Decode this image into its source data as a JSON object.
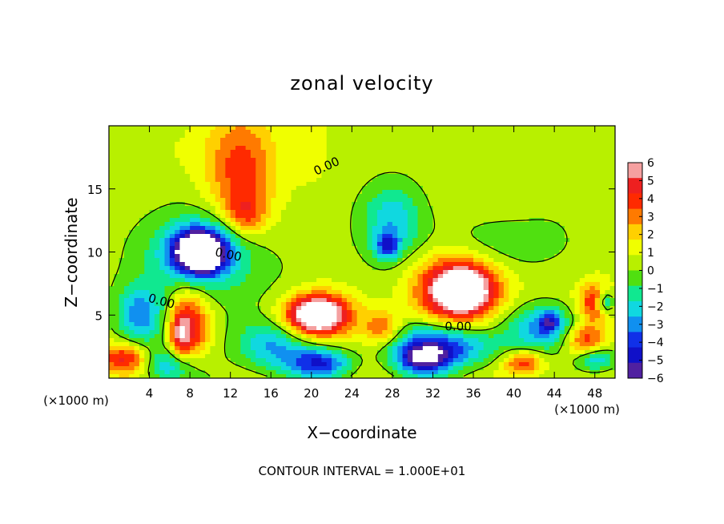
{
  "chart_data": {
    "type": "heatmap",
    "title": "zonal velocity",
    "xlabel": "X−coordinate",
    "ylabel": "Z−coordinate",
    "x_unit_left": "(×1000 m)",
    "x_unit_right": "(×1000 m)",
    "footer": "CONTOUR INTERVAL = 1.000E+01",
    "xlim": [
      0,
      50
    ],
    "ylim": [
      0,
      20
    ],
    "x_ticks": [
      4,
      8,
      12,
      16,
      20,
      24,
      28,
      32,
      36,
      40,
      44,
      48
    ],
    "x_tick_labels": [
      "4",
      "8",
      "12",
      "16",
      "20",
      "24",
      "28",
      "32",
      "36",
      "40",
      "44",
      "48"
    ],
    "y_ticks": [
      5,
      10,
      15
    ],
    "y_tick_labels": [
      "5",
      "10",
      "15"
    ],
    "colorbar": {
      "levels": [
        6,
        5,
        4,
        3,
        2,
        1,
        0,
        -1,
        -2,
        -3,
        -4,
        -5,
        -6
      ],
      "labels": [
        "6",
        "5",
        "4",
        "3",
        "2",
        "1",
        "0",
        "−1",
        "−2",
        "−3",
        "−4",
        "−5",
        "−6"
      ],
      "colors": [
        "#f5a0a0",
        "#ee2020",
        "#ff2a00",
        "#ff7a00",
        "#ffd000",
        "#f0ff00",
        "#b8f000",
        "#50e010",
        "#10e890",
        "#10d8e0",
        "#1090f0",
        "#1030e8",
        "#1010c8",
        "#5020a0"
      ]
    },
    "contour_labels": [
      "0.00",
      "0.00",
      "0.00",
      "0.00"
    ],
    "field": {
      "background": 0.6,
      "blobs": [
        {
          "x": 13,
          "z": 16.5,
          "sx": 3.5,
          "sz": 4.5,
          "v": 3.5
        },
        {
          "x": 13.5,
          "z": 13,
          "sx": 2.0,
          "sz": 1.6,
          "v": 2.5
        },
        {
          "x": 10,
          "z": 8,
          "sx": 11.0,
          "sz": 6.5,
          "v": -0.9
        },
        {
          "x": 9,
          "z": 10,
          "sx": 4.0,
          "sz": 2.6,
          "v": -4.5
        },
        {
          "x": 9,
          "z": 10,
          "sx": 2.2,
          "sz": 1.5,
          "v": -8.0
        },
        {
          "x": 28,
          "z": 12.5,
          "sx": 3.0,
          "sz": 3.0,
          "v": -3.0
        },
        {
          "x": 27.5,
          "z": 10.5,
          "sx": 1.2,
          "sz": 1.0,
          "v": -3.5
        },
        {
          "x": 20.5,
          "z": 5,
          "sx": 3.5,
          "sz": 1.8,
          "v": 6.0
        },
        {
          "x": 20.5,
          "z": 5,
          "sx": 2.2,
          "sz": 1.1,
          "v": 4.0
        },
        {
          "x": 34.5,
          "z": 7,
          "sx": 4.0,
          "sz": 2.6,
          "v": 6.5
        },
        {
          "x": 35,
          "z": 7,
          "sx": 2.5,
          "sz": 1.6,
          "v": 3.5
        },
        {
          "x": 27,
          "z": 4,
          "sx": 1.8,
          "sz": 1.4,
          "v": 3.0
        },
        {
          "x": 8,
          "z": 4,
          "sx": 2.0,
          "sz": 3.2,
          "v": 4.5
        },
        {
          "x": 7,
          "z": 3.5,
          "sx": 1.0,
          "sz": 1.8,
          "v": 3.0
        },
        {
          "x": 3,
          "z": 5,
          "sx": 2.2,
          "sz": 2.2,
          "v": -3.5
        },
        {
          "x": 1.5,
          "z": 1.5,
          "sx": 2.5,
          "sz": 1.2,
          "v": 4.0
        },
        {
          "x": 6,
          "z": 1.0,
          "sx": 3.0,
          "sz": 1.4,
          "v": -3.0
        },
        {
          "x": 16,
          "z": 2.5,
          "sx": 3.5,
          "sz": 2.0,
          "v": -3.0
        },
        {
          "x": 21,
          "z": 1.2,
          "sx": 3.0,
          "sz": 1.2,
          "v": -4.5
        },
        {
          "x": 33,
          "z": 2.5,
          "sx": 5.0,
          "sz": 1.8,
          "v": -5.0
        },
        {
          "x": 31,
          "z": 1.5,
          "sx": 2.5,
          "sz": 1.2,
          "v": -4.0
        },
        {
          "x": 43,
          "z": 4,
          "sx": 3.5,
          "sz": 1.8,
          "v": -3.5
        },
        {
          "x": 43.5,
          "z": 4.5,
          "sx": 1.0,
          "sz": 0.8,
          "v": -3.0
        },
        {
          "x": 41,
          "z": 1.2,
          "sx": 2.0,
          "sz": 1.0,
          "v": 4.0
        },
        {
          "x": 48,
          "z": 6,
          "sx": 1.6,
          "sz": 1.6,
          "v": 4.0
        },
        {
          "x": 49,
          "z": 6,
          "sx": 0.9,
          "sz": 0.9,
          "v": -4.0
        },
        {
          "x": 47,
          "z": 3,
          "sx": 2.0,
          "sz": 1.3,
          "v": 3.5
        },
        {
          "x": 48,
          "z": 1.5,
          "sx": 2.0,
          "sz": 1.0,
          "v": -3.5
        },
        {
          "x": 38,
          "z": 10.5,
          "sx": 6.0,
          "sz": 2.2,
          "v": -1.2
        },
        {
          "x": 44,
          "z": 12,
          "sx": 4.0,
          "sz": 4.0,
          "v": -0.4
        },
        {
          "x": 4,
          "z": 18,
          "sx": 5.0,
          "sz": 2.0,
          "v": 0.3
        },
        {
          "x": 20,
          "z": 18,
          "sx": 2.0,
          "sz": 3.0,
          "v": 0.6
        }
      ]
    }
  }
}
